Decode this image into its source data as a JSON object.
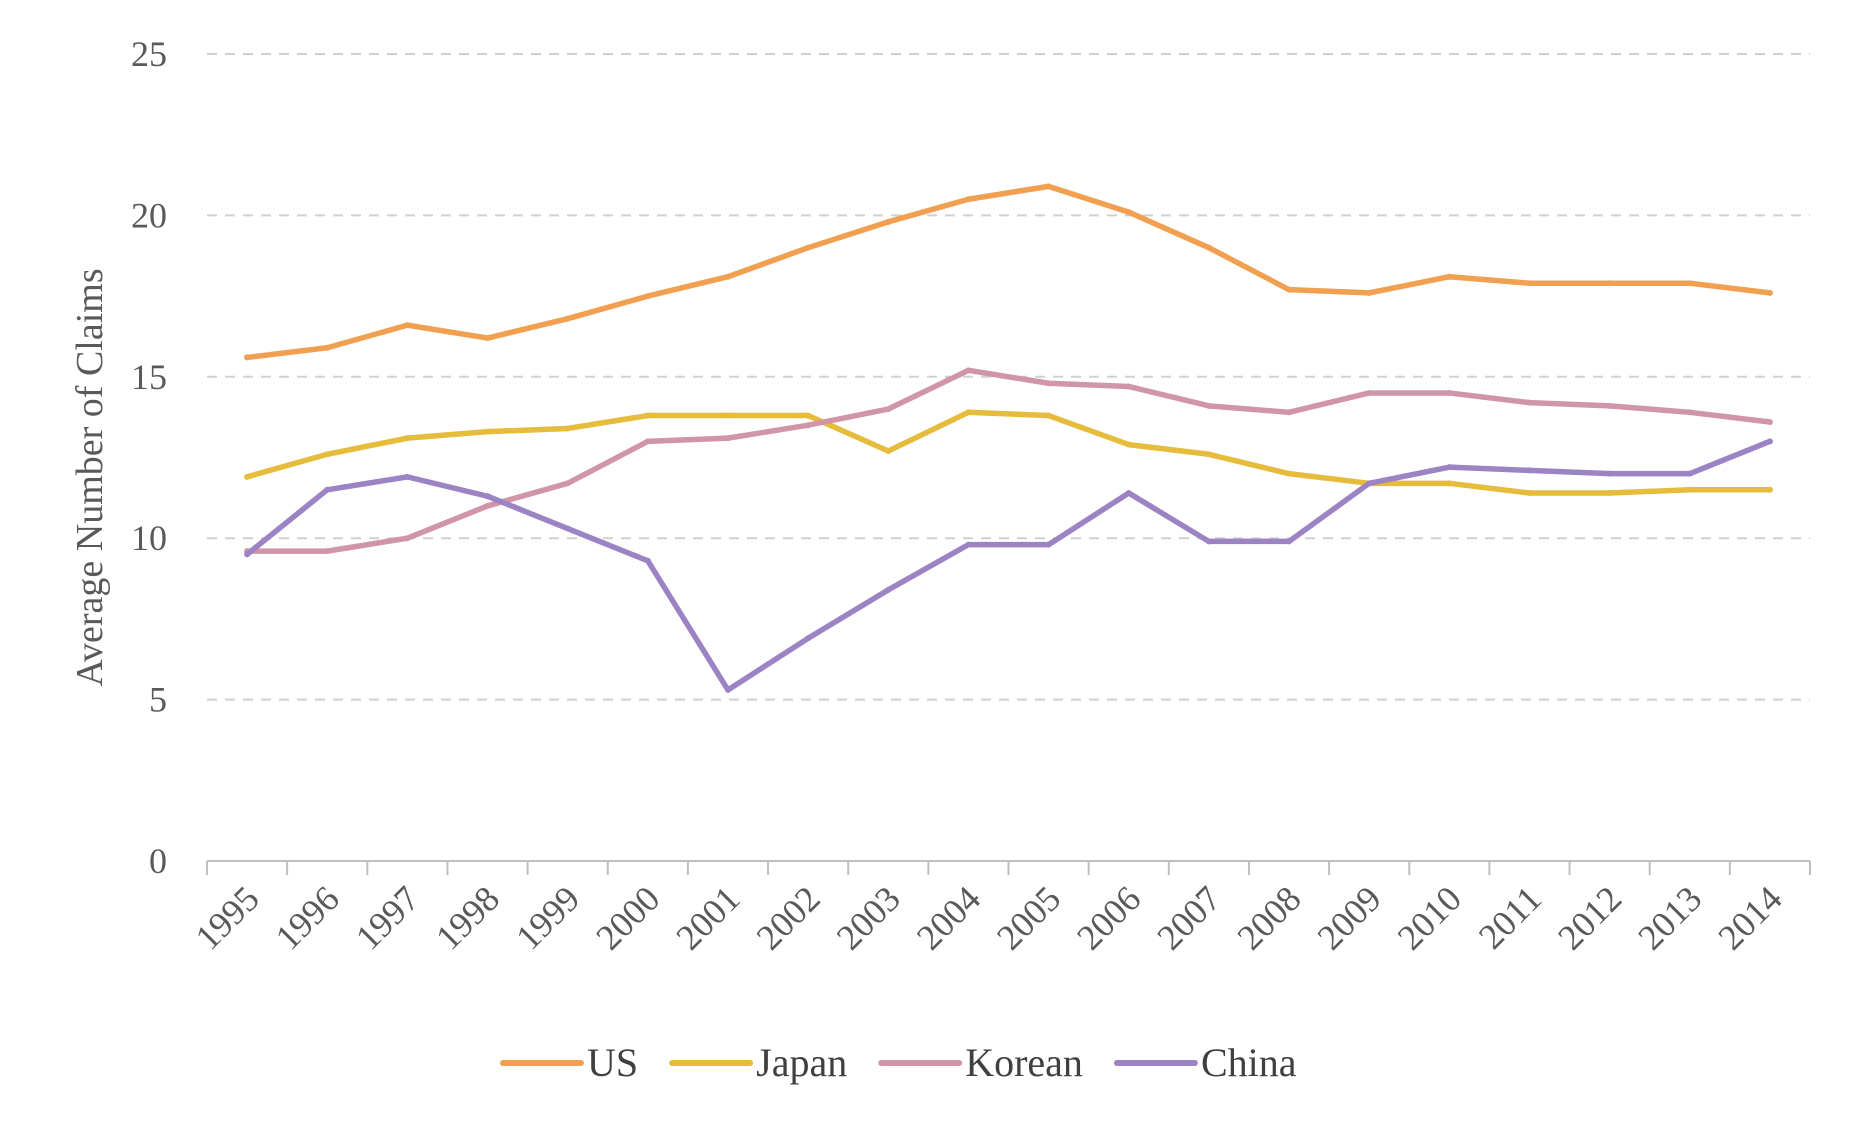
{
  "chart_data": {
    "type": "line",
    "title": "",
    "xlabel": "",
    "ylabel": "Average Number of Claims",
    "ylim": [
      0,
      25
    ],
    "yticks": [
      0,
      5,
      10,
      15,
      20,
      25
    ],
    "grid": true,
    "legend_position": "bottom",
    "categories": [
      "1995",
      "1996",
      "1997",
      "1998",
      "1999",
      "2000",
      "2001",
      "2002",
      "2003",
      "2004",
      "2005",
      "2006",
      "2007",
      "2008",
      "2009",
      "2010",
      "2011",
      "2012",
      "2013",
      "2014"
    ],
    "series": [
      {
        "name": "US",
        "color": "#F0A050",
        "values": [
          15.6,
          15.9,
          16.6,
          16.2,
          16.8,
          17.5,
          18.1,
          19.0,
          19.8,
          20.5,
          20.9,
          20.1,
          19.0,
          17.7,
          17.6,
          18.1,
          17.9,
          17.9,
          17.9,
          17.6
        ]
      },
      {
        "name": "Japan",
        "color": "#E6BC3C",
        "values": [
          11.9,
          12.6,
          13.1,
          13.3,
          13.4,
          13.8,
          13.8,
          13.8,
          12.7,
          13.9,
          13.8,
          12.9,
          12.6,
          12.0,
          11.7,
          11.7,
          11.4,
          11.4,
          11.5,
          11.5
        ]
      },
      {
        "name": "Korean",
        "color": "#D096A8",
        "values": [
          9.6,
          9.6,
          10.0,
          11.0,
          11.7,
          13.0,
          13.1,
          13.5,
          14.0,
          15.2,
          14.8,
          14.7,
          14.1,
          13.9,
          14.5,
          14.5,
          14.2,
          14.1,
          13.9,
          13.6
        ]
      },
      {
        "name": "China",
        "color": "#9B83C4",
        "values": [
          9.5,
          11.5,
          11.9,
          11.3,
          10.3,
          9.3,
          5.3,
          6.9,
          8.4,
          9.8,
          9.8,
          11.4,
          9.9,
          9.9,
          11.7,
          12.2,
          12.1,
          12.0,
          12.0,
          13.0
        ]
      }
    ]
  }
}
